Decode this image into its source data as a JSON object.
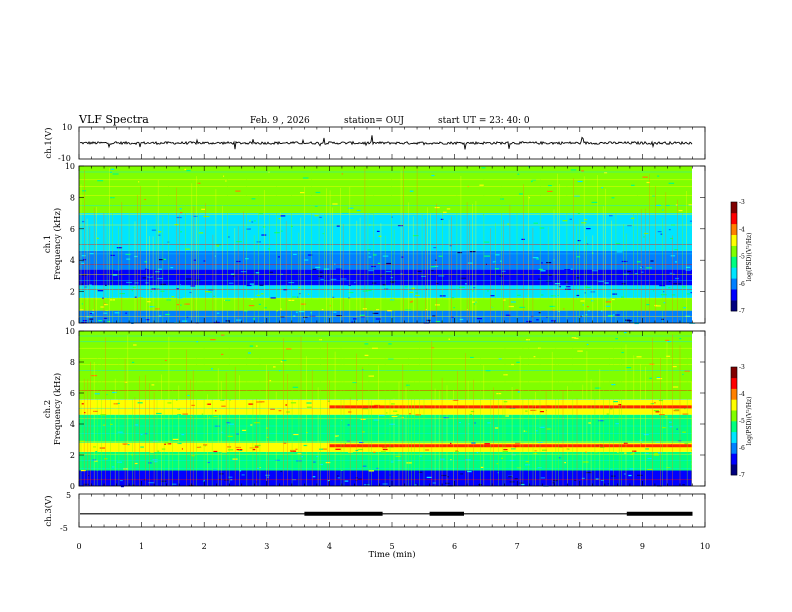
{
  "header": {
    "title": "VLF Spectra",
    "date": "Feb. 9 , 2026",
    "station": "station= OUJ",
    "start": "start  UT =   23: 40: 0"
  },
  "colors": {
    "background": "#ffffff",
    "axes": "#000000",
    "colormap": [
      "#00007f",
      "#0000ff",
      "#0080ff",
      "#00e5ff",
      "#00ff80",
      "#80ff00",
      "#ffff00",
      "#ff8000",
      "#ff0000",
      "#800000"
    ]
  },
  "chart_data": [
    {
      "type": "line",
      "panel": "ch1-waveform",
      "ylabel": "ch.1(V)",
      "ylim": [
        -10,
        10
      ],
      "yticks": [
        "10",
        "-10"
      ],
      "baseline_value": 0
    },
    {
      "type": "heatmap",
      "panel": "ch1-spectrogram",
      "ylabel_top": "ch.1",
      "ylabel": "Frequency  (kHz)",
      "ylim": [
        0,
        10
      ],
      "yticks": [
        "0",
        "2",
        "4",
        "6",
        "8",
        "10"
      ],
      "colorbar": {
        "label": "log(PSD)(V²/Hz)",
        "range": [
          -7,
          -3
        ],
        "ticks": [
          "-3",
          "-4",
          "-5",
          "-6",
          "-7"
        ]
      },
      "bands": [
        {
          "from_kHz": 0.0,
          "to_kHz": 0.8,
          "level": 2
        },
        {
          "from_kHz": 0.8,
          "to_kHz": 1.6,
          "level": 5
        },
        {
          "from_kHz": 1.6,
          "to_kHz": 2.4,
          "level": 3
        },
        {
          "from_kHz": 2.4,
          "to_kHz": 3.4,
          "level": 1
        },
        {
          "from_kHz": 3.4,
          "to_kHz": 4.6,
          "level": 2
        },
        {
          "from_kHz": 4.6,
          "to_kHz": 7.0,
          "level": 3
        },
        {
          "from_kHz": 7.0,
          "to_kHz": 10.0,
          "level": 5
        }
      ]
    },
    {
      "type": "heatmap",
      "panel": "ch2-spectrogram",
      "ylabel_top": "ch.2",
      "ylabel": "Frequency  (kHz)",
      "ylim": [
        0,
        10
      ],
      "yticks": [
        "0",
        "2",
        "4",
        "6",
        "8",
        "10"
      ],
      "colorbar": {
        "label": "log(PSD)(V²/Hz)",
        "range": [
          -7,
          -3
        ],
        "ticks": [
          "-3",
          "-4",
          "-5",
          "-6",
          "-7"
        ]
      },
      "bands": [
        {
          "from_kHz": 0.0,
          "to_kHz": 1.0,
          "level": 1
        },
        {
          "from_kHz": 1.0,
          "to_kHz": 2.2,
          "level": 4
        },
        {
          "from_kHz": 2.2,
          "to_kHz": 2.8,
          "level": 6
        },
        {
          "from_kHz": 2.8,
          "to_kHz": 4.6,
          "level": 4
        },
        {
          "from_kHz": 4.6,
          "to_kHz": 5.6,
          "level": 6
        },
        {
          "from_kHz": 5.6,
          "to_kHz": 10.0,
          "level": 5
        }
      ],
      "hot_lines_kHz": [
        5.1,
        2.6
      ]
    },
    {
      "type": "line",
      "panel": "ch3-signal",
      "ylabel": "ch.3(V)",
      "ylim": [
        -5,
        5
      ],
      "yticks": [
        "5",
        "0",
        "-5"
      ],
      "level_value": -1,
      "thick_segments_min": [
        [
          3.6,
          4.85
        ],
        [
          5.6,
          6.15
        ],
        [
          8.75,
          9.8
        ]
      ],
      "xlabel": "Time  (min)",
      "xlim": [
        0,
        10
      ],
      "xticks": [
        "0",
        "1",
        "2",
        "3",
        "4",
        "5",
        "6",
        "7",
        "8",
        "9",
        "10"
      ]
    }
  ]
}
